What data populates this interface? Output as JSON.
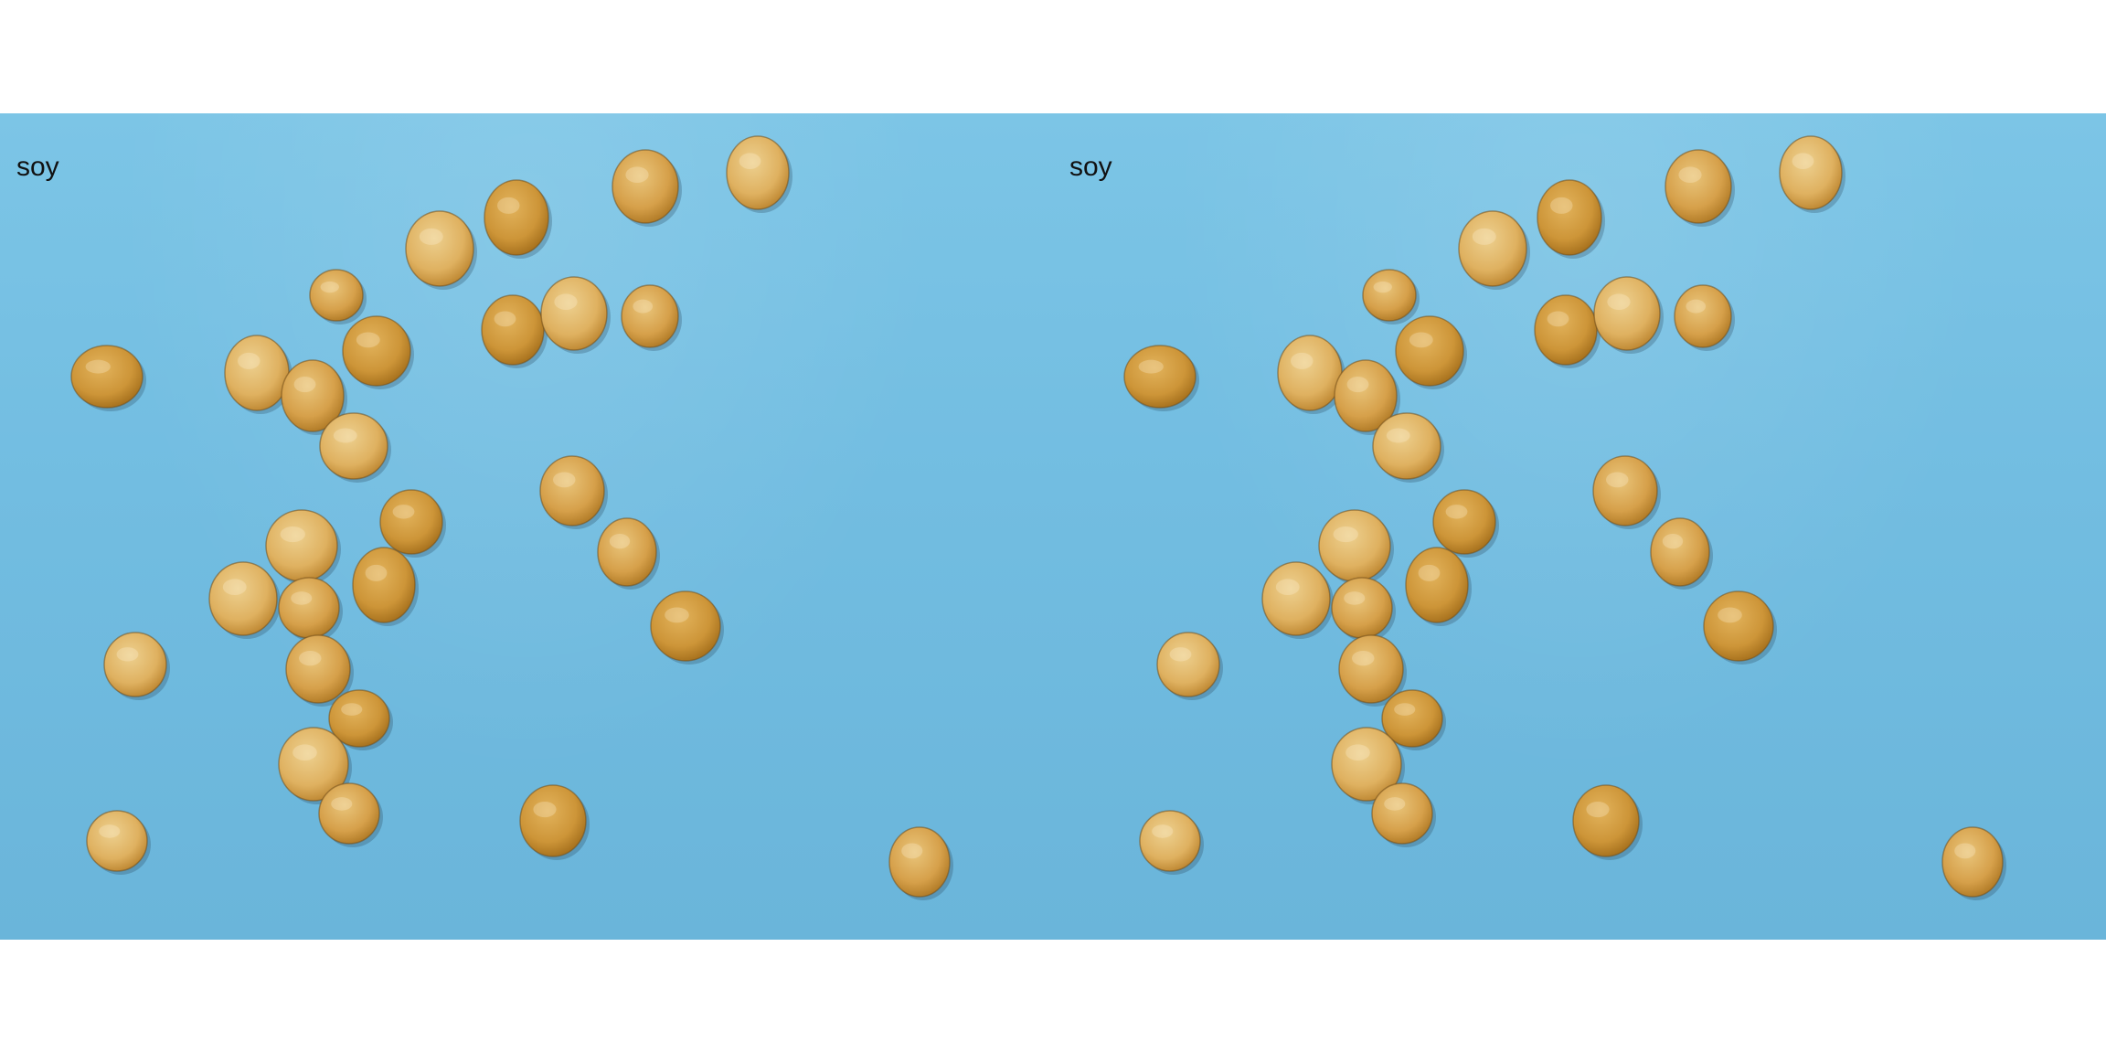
{
  "panels": [
    {
      "label": "soy"
    },
    {
      "label": "soy"
    }
  ],
  "colors": {
    "background": "#7cc5e6",
    "bean_light": "#e7c27a",
    "bean_mid": "#d7a655",
    "bean_dark": "#b98428"
  }
}
